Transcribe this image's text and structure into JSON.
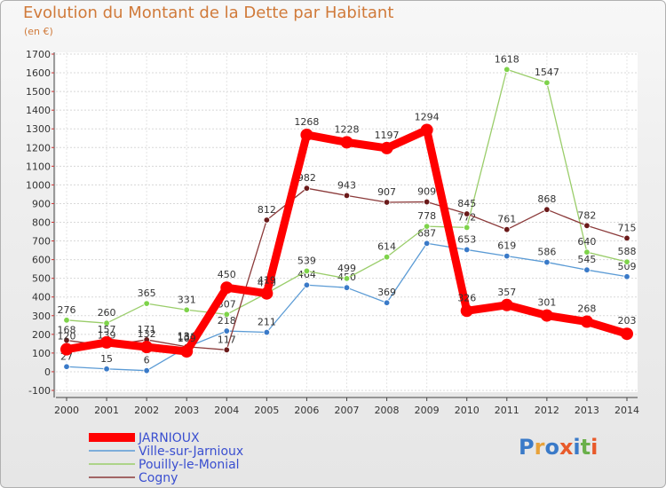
{
  "title": "Evolution du Montant de la Dette par Habitant",
  "subtitle": "(en €)",
  "brand": [
    "P",
    "r",
    "o",
    "x",
    "i",
    "t",
    "i"
  ],
  "brand_colors": [
    "#3a7ac8",
    "#e8a23a",
    "#3a7ac8",
    "#e85a2a",
    "#3a7ac8",
    "#6ab04a",
    "#e85a2a"
  ],
  "chart_data": {
    "type": "line",
    "x": [
      "2000",
      "2001",
      "2002",
      "2003",
      "2004",
      "2005",
      "2006",
      "2007",
      "2008",
      "2009",
      "2010",
      "2011",
      "2012",
      "2013",
      "2014"
    ],
    "ylim": [
      -100,
      1700
    ],
    "yticks": [
      "-100",
      "0",
      "100",
      "200",
      "300",
      "400",
      "500",
      "600",
      "700",
      "800",
      "900",
      "1000",
      "1100",
      "1200",
      "1300",
      "1400",
      "1500",
      "1600",
      "1700"
    ],
    "grid": true,
    "legend_position": "bottom-left",
    "series": [
      {
        "name": "Ville-sur-Jarnioux",
        "color": "#5b9bd5",
        "marker": "#3a7ac8",
        "values": [
          27,
          15,
          6,
          131,
          218,
          211,
          464,
          450,
          369,
          687,
          653,
          619,
          586,
          545,
          509
        ],
        "labels": [
          "27",
          "15",
          "6",
          "131",
          "218",
          "211",
          "464",
          "450",
          "369",
          "687",
          "653",
          "619",
          "586",
          "545",
          "509"
        ]
      },
      {
        "name": "Pouilly-le-Monial",
        "color": "#9acd6a",
        "marker": "#7ed34a",
        "values": [
          276,
          260,
          365,
          331,
          307,
          420,
          539,
          499,
          614,
          778,
          772,
          1618,
          1547,
          640,
          588
        ],
        "labels": [
          "276",
          "260",
          "365",
          "331",
          "307",
          "420",
          "539",
          "499",
          "614",
          "778",
          "772",
          "1618",
          "1547",
          "640",
          "588"
        ]
      },
      {
        "name": "Cogny",
        "color": "#8b3a3a",
        "marker": "#6b1a1a",
        "values": [
          168,
          139,
          171,
          134,
          117,
          812,
          982,
          943,
          907,
          909,
          845,
          761,
          868,
          782,
          715
        ],
        "labels": [
          "168",
          "139",
          "171",
          "134",
          "117",
          "812",
          "982",
          "943",
          "907",
          "909",
          "845",
          "761",
          "868",
          "782",
          "715"
        ]
      },
      {
        "name": "JARNIOUX",
        "color": "#ff0000",
        "marker": "#ff0000",
        "values": [
          120,
          157,
          132,
          109,
          450,
          419,
          1268,
          1228,
          1197,
          1294,
          326,
          357,
          301,
          268,
          203
        ],
        "labels": [
          "120",
          "157",
          "132",
          "109",
          "450",
          "419",
          "1268",
          "1228",
          "1197",
          "1294",
          "326",
          "357",
          "301",
          "268",
          "203"
        ]
      }
    ],
    "legend": [
      "JARNIOUX",
      "Ville-sur-Jarnioux",
      "Pouilly-le-Monial",
      "Cogny"
    ]
  }
}
